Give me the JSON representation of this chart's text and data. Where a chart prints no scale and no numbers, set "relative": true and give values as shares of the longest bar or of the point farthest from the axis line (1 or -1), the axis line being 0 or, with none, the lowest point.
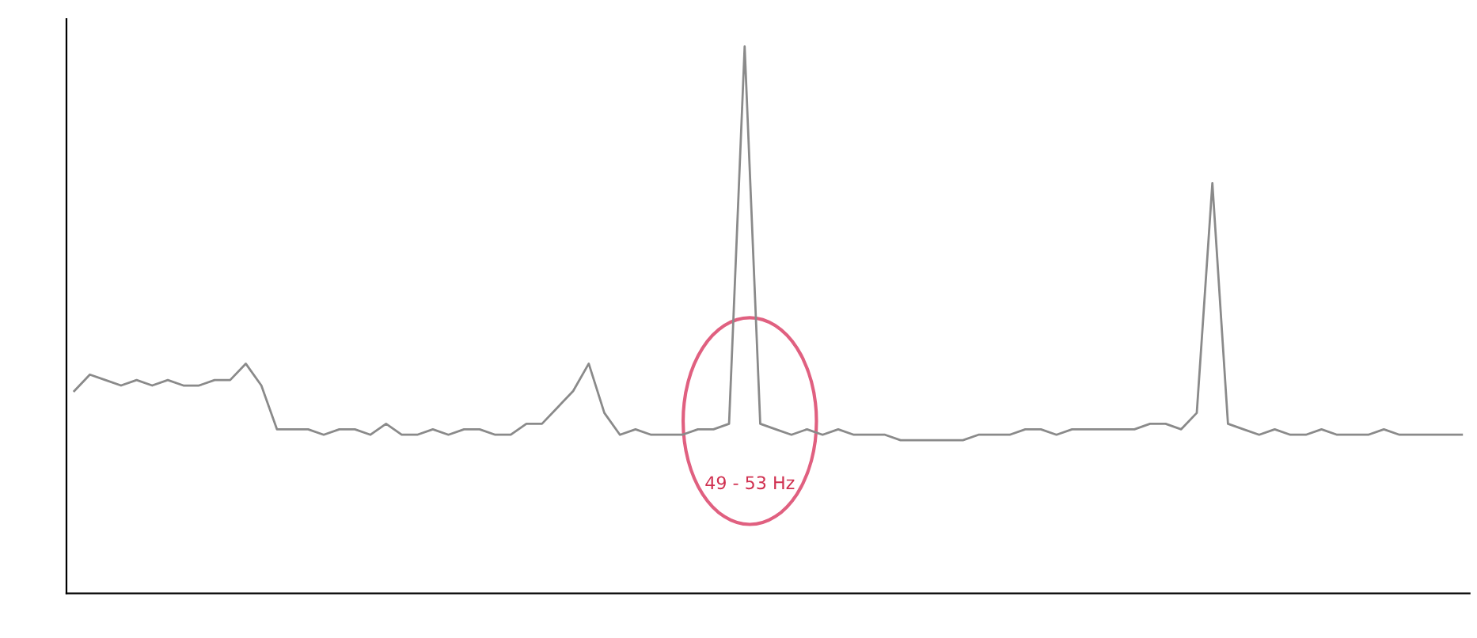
{
  "chart_data": {
    "type": "line",
    "relative": true,
    "categories": [
      null,
      null,
      null,
      null,
      null,
      null,
      null,
      null,
      null,
      null,
      null,
      null,
      null,
      null,
      null,
      null,
      null,
      null,
      null,
      null,
      null,
      null,
      null,
      null,
      null,
      null,
      null,
      null,
      null,
      null,
      null,
      null,
      null,
      null,
      null,
      null,
      null,
      null,
      null,
      null,
      null,
      null,
      null,
      null,
      null,
      null,
      null,
      null,
      null,
      null,
      null,
      null,
      null,
      null,
      null,
      null,
      null,
      null,
      null,
      null,
      null,
      null,
      null,
      null,
      null,
      null,
      null,
      null,
      null,
      null,
      null,
      null,
      null,
      null,
      null,
      null,
      null,
      null,
      null,
      null,
      null,
      null,
      null,
      null,
      null,
      null,
      null,
      null,
      null,
      null
    ],
    "series": [
      {
        "color": "#8a8a8a",
        "values": [
          0.37,
          0.4,
          0.39,
          0.38,
          0.39,
          0.38,
          0.39,
          0.38,
          0.38,
          0.39,
          0.39,
          0.42,
          0.38,
          0.3,
          0.3,
          0.3,
          0.29,
          0.3,
          0.3,
          0.29,
          0.31,
          0.29,
          0.29,
          0.3,
          0.29,
          0.3,
          0.3,
          0.29,
          0.29,
          0.31,
          0.31,
          0.34,
          0.37,
          0.42,
          0.33,
          0.29,
          0.3,
          0.29,
          0.29,
          0.29,
          0.3,
          0.3,
          0.31,
          1.0,
          0.31,
          0.3,
          0.29,
          0.3,
          0.29,
          0.3,
          0.29,
          0.29,
          0.29,
          0.28,
          0.28,
          0.28,
          0.28,
          0.28,
          0.29,
          0.29,
          0.29,
          0.3,
          0.3,
          0.29,
          0.3,
          0.3,
          0.3,
          0.3,
          0.3,
          0.31,
          0.31,
          0.3,
          0.33,
          0.75,
          0.31,
          0.3,
          0.29,
          0.3,
          0.29,
          0.29,
          0.3,
          0.29,
          0.29,
          0.29,
          0.3,
          0.29,
          0.29,
          0.29,
          0.29,
          0.29
        ]
      }
    ],
    "annotations": [
      "49 - 53 Hz"
    ],
    "grid": false,
    "legend": false
  }
}
